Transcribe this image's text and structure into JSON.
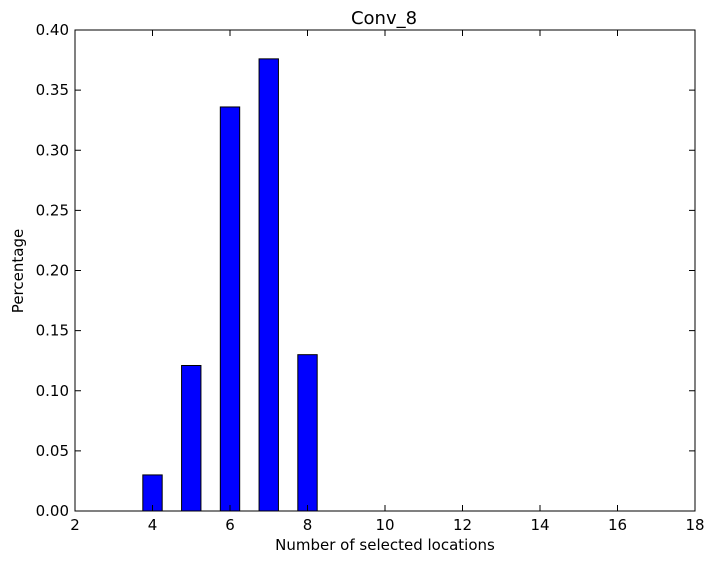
{
  "chart_data": {
    "type": "bar",
    "title": "Conv_8",
    "xlabel": "Number of selected locations",
    "ylabel": "Percentage",
    "xlim": [
      2,
      18
    ],
    "ylim": [
      0,
      0.4
    ],
    "xticks": [
      "2",
      "4",
      "6",
      "8",
      "10",
      "12",
      "14",
      "16",
      "18"
    ],
    "yticks": [
      "0.00",
      "0.05",
      "0.10",
      "0.15",
      "0.20",
      "0.25",
      "0.30",
      "0.35",
      "0.40"
    ],
    "bar_width": 0.5,
    "bar_color": "#0000ff",
    "grid": false,
    "x": [
      4,
      5,
      6,
      7,
      8,
      9,
      10,
      11,
      12,
      13,
      14,
      15,
      16
    ],
    "values": [
      0.03,
      0.121,
      0.336,
      0.376,
      0.13,
      0,
      0,
      0,
      0,
      0,
      0,
      0,
      0
    ]
  }
}
